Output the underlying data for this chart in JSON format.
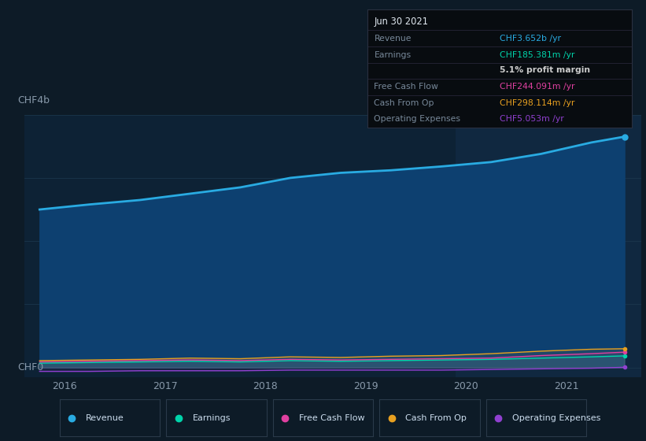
{
  "bg_color": "#0d1b27",
  "plot_bg_color": "#0d2235",
  "highlight_bg_color": "#102840",
  "grid_color": "#1e3a50",
  "text_color": "#8899aa",
  "title_label": "CHF4b",
  "zero_label": "CHF0",
  "x_ticks": [
    2016,
    2017,
    2018,
    2019,
    2020,
    2021
  ],
  "years": [
    2015.75,
    2016.25,
    2016.75,
    2017.25,
    2017.75,
    2018.25,
    2018.75,
    2019.25,
    2019.75,
    2020.25,
    2020.75,
    2021.25,
    2021.58
  ],
  "revenue": [
    2.5,
    2.58,
    2.65,
    2.75,
    2.85,
    3.0,
    3.08,
    3.12,
    3.18,
    3.25,
    3.38,
    3.56,
    3.652
  ],
  "earnings": [
    0.07,
    0.08,
    0.09,
    0.1,
    0.09,
    0.11,
    0.1,
    0.11,
    0.12,
    0.13,
    0.15,
    0.17,
    0.185
  ],
  "free_cash_flow": [
    0.09,
    0.1,
    0.11,
    0.12,
    0.11,
    0.13,
    0.12,
    0.13,
    0.14,
    0.15,
    0.19,
    0.22,
    0.244
  ],
  "cash_from_op": [
    0.11,
    0.12,
    0.13,
    0.15,
    0.14,
    0.17,
    0.16,
    0.18,
    0.19,
    0.22,
    0.26,
    0.29,
    0.298
  ],
  "operating_expenses": [
    -0.06,
    -0.06,
    -0.05,
    -0.05,
    -0.05,
    -0.04,
    -0.04,
    -0.04,
    -0.04,
    -0.03,
    -0.02,
    -0.01,
    0.005
  ],
  "revenue_color": "#29abe2",
  "earnings_color": "#00d4aa",
  "free_cash_flow_color": "#e040a0",
  "cash_from_op_color": "#e8a020",
  "operating_expenses_color": "#9040d0",
  "revenue_fill_color": "#0d4070",
  "highlight_start": 2019.9,
  "highlight_end": 2021.75,
  "tooltip": {
    "date": "Jun 30 2021",
    "revenue_label": "Revenue",
    "revenue_value": "CHF3.652b",
    "revenue_color": "#29abe2",
    "earnings_label": "Earnings",
    "earnings_value": "CHF185.381m",
    "earnings_color": "#00d4aa",
    "profit_margin": "5.1%",
    "fcf_label": "Free Cash Flow",
    "fcf_value": "CHF244.091m",
    "fcf_color": "#e040a0",
    "cfop_label": "Cash From Op",
    "cfop_value": "CHF298.114m",
    "cfop_color": "#e8a020",
    "opex_label": "Operating Expenses",
    "opex_value": "CHF5.053m",
    "opex_color": "#9040d0"
  },
  "legend": [
    {
      "label": "Revenue",
      "color": "#29abe2"
    },
    {
      "label": "Earnings",
      "color": "#00d4aa"
    },
    {
      "label": "Free Cash Flow",
      "color": "#e040a0"
    },
    {
      "label": "Cash From Op",
      "color": "#e8a020"
    },
    {
      "label": "Operating Expenses",
      "color": "#9040d0"
    }
  ],
  "ylim": [
    -0.15,
    4.0
  ],
  "xlim": [
    2015.6,
    2021.75
  ]
}
